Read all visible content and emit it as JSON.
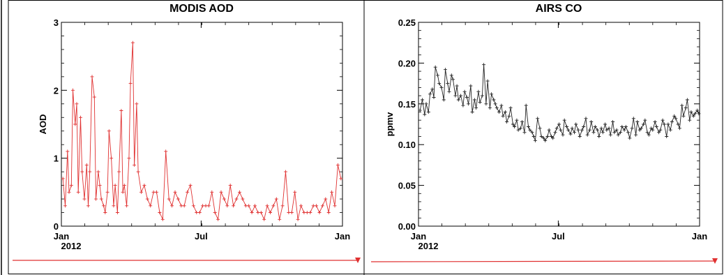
{
  "chart_data": [
    {
      "type": "line",
      "title": "MODIS AOD",
      "ylabel": "AOD",
      "xlabel": "",
      "ylim": [
        0,
        3
      ],
      "yticks": [
        0,
        1,
        2,
        3
      ],
      "ytick_labels": [
        "0",
        "1",
        "2",
        "3"
      ],
      "xlim": [
        0,
        366
      ],
      "xticks": [
        {
          "label": "Jan",
          "sub": "2012",
          "day": 0
        },
        {
          "label": "Jul",
          "sub": "",
          "day": 182
        },
        {
          "label": "Jan",
          "sub": "",
          "day": 366
        }
      ],
      "grid": false,
      "color": "#e03030",
      "series": [
        {
          "x": [
            2,
            5,
            8,
            10,
            13,
            15,
            18,
            20,
            22,
            25,
            27,
            30,
            33,
            35,
            37,
            40,
            43,
            45,
            48,
            50,
            52,
            55,
            57,
            60,
            62,
            65,
            68,
            70,
            73,
            75,
            78,
            80,
            82,
            85,
            88,
            90,
            93,
            95,
            98,
            100,
            104,
            108,
            112,
            116,
            120,
            124,
            128,
            132,
            136,
            140,
            144,
            148,
            152,
            156,
            160,
            164,
            168,
            172,
            176,
            180,
            184,
            188,
            192,
            196,
            200,
            204,
            208,
            212,
            216,
            220,
            224,
            228,
            232,
            236,
            240,
            244,
            248,
            252,
            256,
            260,
            264,
            268,
            272,
            276,
            280,
            284,
            288,
            292,
            296,
            300,
            304,
            308,
            312,
            316,
            320,
            324,
            328,
            332,
            336,
            340,
            344,
            348,
            352,
            356,
            360,
            364
          ],
          "y": [
            0.7,
            0.3,
            1.1,
            0.5,
            0.6,
            2.0,
            1.5,
            1.8,
            0.5,
            1.6,
            0.8,
            0.4,
            0.9,
            0.3,
            0.8,
            2.2,
            1.9,
            0.4,
            0.8,
            0.6,
            0.4,
            0.3,
            0.2,
            0.5,
            1.4,
            1.0,
            0.3,
            0.6,
            0.2,
            0.8,
            1.7,
            0.5,
            0.6,
            0.3,
            1.0,
            2.1,
            2.7,
            0.9,
            1.8,
            0.8,
            0.5,
            0.6,
            0.4,
            0.3,
            0.5,
            0.5,
            0.2,
            0.1,
            1.1,
            0.4,
            0.3,
            0.5,
            0.4,
            0.3,
            0.3,
            0.5,
            0.6,
            0.3,
            0.2,
            0.2,
            0.3,
            0.3,
            0.3,
            0.5,
            0.2,
            0.1,
            0.5,
            0.4,
            0.3,
            0.6,
            0.3,
            0.4,
            0.5,
            0.4,
            0.3,
            0.3,
            0.2,
            0.3,
            0.2,
            0.2,
            0.1,
            0.3,
            0.2,
            0.3,
            0.4,
            0.1,
            0.3,
            0.8,
            0.2,
            0.2,
            0.5,
            0.1,
            0.3,
            0.2,
            0.2,
            0.2,
            0.3,
            0.3,
            0.2,
            0.3,
            0.4,
            0.2,
            0.5,
            0.3,
            0.9,
            0.7
          ]
        }
      ]
    },
    {
      "type": "line",
      "title": "AIRS CO",
      "ylabel": "ppmv",
      "xlabel": "",
      "ylim": [
        0,
        0.25
      ],
      "yticks": [
        0,
        0.05,
        0.1,
        0.15,
        0.2,
        0.25
      ],
      "ytick_labels": [
        "0.00",
        "0.05",
        "0.10",
        "0.15",
        "0.20",
        "0.25"
      ],
      "xlim": [
        0,
        366
      ],
      "xticks": [
        {
          "label": "Jan",
          "sub": "2012",
          "day": 0
        },
        {
          "label": "Jul",
          "sub": "",
          "day": 182
        },
        {
          "label": "Jan",
          "sub": "",
          "day": 366
        }
      ],
      "grid": false,
      "color": "#222222",
      "series": [
        {
          "x": [
            2,
            5,
            8,
            10,
            13,
            15,
            18,
            20,
            22,
            25,
            27,
            30,
            33,
            35,
            38,
            40,
            43,
            45,
            48,
            50,
            52,
            55,
            58,
            60,
            63,
            65,
            68,
            70,
            73,
            75,
            78,
            80,
            83,
            85,
            88,
            90,
            93,
            95,
            98,
            100,
            102,
            105,
            108,
            110,
            113,
            115,
            118,
            120,
            123,
            125,
            128,
            130,
            133,
            135,
            138,
            140,
            143,
            145,
            148,
            150,
            152,
            155,
            158,
            160,
            163,
            165,
            168,
            170,
            173,
            175,
            178,
            180,
            183,
            185,
            188,
            190,
            193,
            195,
            198,
            200,
            203,
            205,
            208,
            210,
            213,
            215,
            218,
            220,
            223,
            225,
            228,
            230,
            233,
            235,
            238,
            240,
            243,
            245,
            248,
            250,
            253,
            255,
            258,
            260,
            263,
            265,
            268,
            270,
            273,
            275,
            278,
            280,
            283,
            285,
            288,
            290,
            293,
            295,
            298,
            300,
            303,
            305,
            308,
            310,
            313,
            315,
            318,
            320,
            323,
            325,
            328,
            330,
            333,
            335,
            338,
            340,
            343,
            345,
            348,
            350,
            353,
            355,
            358,
            360,
            363,
            365
          ],
          "y": [
            0.142,
            0.155,
            0.137,
            0.15,
            0.14,
            0.162,
            0.168,
            0.158,
            0.195,
            0.185,
            0.175,
            0.17,
            0.155,
            0.192,
            0.175,
            0.165,
            0.185,
            0.18,
            0.16,
            0.172,
            0.155,
            0.16,
            0.148,
            0.165,
            0.158,
            0.15,
            0.172,
            0.14,
            0.155,
            0.145,
            0.165,
            0.152,
            0.16,
            0.198,
            0.15,
            0.178,
            0.145,
            0.162,
            0.155,
            0.15,
            0.145,
            0.14,
            0.148,
            0.135,
            0.14,
            0.128,
            0.135,
            0.145,
            0.125,
            0.122,
            0.13,
            0.118,
            0.12,
            0.128,
            0.115,
            0.148,
            0.122,
            0.118,
            0.115,
            0.11,
            0.105,
            0.132,
            0.12,
            0.11,
            0.108,
            0.105,
            0.11,
            0.118,
            0.11,
            0.108,
            0.115,
            0.12,
            0.125,
            0.118,
            0.112,
            0.13,
            0.122,
            0.118,
            0.113,
            0.12,
            0.115,
            0.125,
            0.118,
            0.11,
            0.118,
            0.122,
            0.132,
            0.112,
            0.118,
            0.128,
            0.115,
            0.122,
            0.118,
            0.11,
            0.12,
            0.115,
            0.125,
            0.118,
            0.12,
            0.112,
            0.128,
            0.115,
            0.118,
            0.112,
            0.115,
            0.122,
            0.118,
            0.122,
            0.115,
            0.108,
            0.12,
            0.132,
            0.112,
            0.128,
            0.118,
            0.12,
            0.125,
            0.13,
            0.115,
            0.112,
            0.12,
            0.118,
            0.128,
            0.122,
            0.115,
            0.118,
            0.13,
            0.125,
            0.11,
            0.125,
            0.118,
            0.128,
            0.135,
            0.132,
            0.125,
            0.12,
            0.148,
            0.135,
            0.145,
            0.155,
            0.13,
            0.14,
            0.135,
            0.138,
            0.142,
            0.138
          ]
        }
      ]
    }
  ],
  "scroll_arrow_color": "#e03030"
}
